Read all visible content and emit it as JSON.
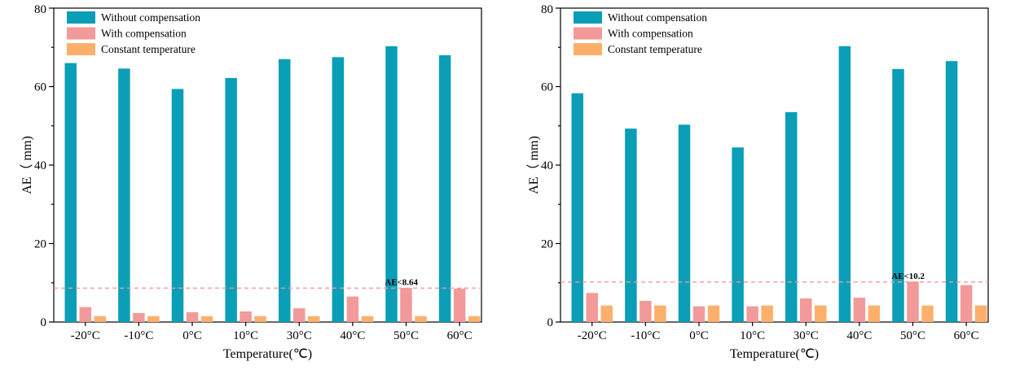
{
  "colors": {
    "without": "#0a9eb7",
    "with": "#f29a9a",
    "constant": "#fdb06c",
    "threshold": "#f29a9a"
  },
  "chart_data": [
    {
      "type": "bar",
      "categories": [
        "-20°C",
        "-10°C",
        "0°C",
        "10°C",
        "30°C",
        "40°C",
        "50°C",
        "60°C"
      ],
      "series": [
        {
          "name": "Without compensation",
          "values": [
            66.0,
            64.6,
            59.4,
            62.2,
            67.0,
            67.5,
            70.3,
            68.0
          ]
        },
        {
          "name": "With compensation",
          "values": [
            3.8,
            2.3,
            2.5,
            2.7,
            3.5,
            6.5,
            8.7,
            8.5
          ]
        },
        {
          "name": "Constant temperature",
          "values": [
            1.5,
            1.5,
            1.5,
            1.5,
            1.5,
            1.5,
            1.5,
            1.5
          ]
        }
      ],
      "threshold": 8.64,
      "annotation": "AE<8.64",
      "xlabel": "Temperature(℃)",
      "ylabel": "AE（ mm)",
      "ylim": [
        0,
        80
      ],
      "yticks": [
        "0",
        "20",
        "40",
        "60",
        "80"
      ],
      "legend_position": "top-left",
      "grid": false
    },
    {
      "type": "bar",
      "categories": [
        "-20°C",
        "-10°C",
        "0°C",
        "10°C",
        "30°C",
        "40°C",
        "50°C",
        "60°C"
      ],
      "series": [
        {
          "name": "Without compensation",
          "values": [
            58.3,
            49.3,
            50.3,
            44.5,
            53.5,
            70.3,
            64.5,
            66.5
          ]
        },
        {
          "name": "With compensation",
          "values": [
            7.4,
            5.4,
            4.0,
            4.0,
            6.0,
            6.2,
            10.3,
            9.4
          ]
        },
        {
          "name": "Constant temperature",
          "values": [
            4.2,
            4.2,
            4.2,
            4.2,
            4.2,
            4.2,
            4.2,
            4.2
          ]
        }
      ],
      "threshold": 10.2,
      "annotation": "AE<10.2",
      "xlabel": "Temperature(℃)",
      "ylabel": "AE（ mm)",
      "ylim": [
        0,
        80
      ],
      "yticks": [
        "0",
        "20",
        "40",
        "60",
        "80"
      ],
      "legend_position": "top-left",
      "grid": false
    }
  ]
}
